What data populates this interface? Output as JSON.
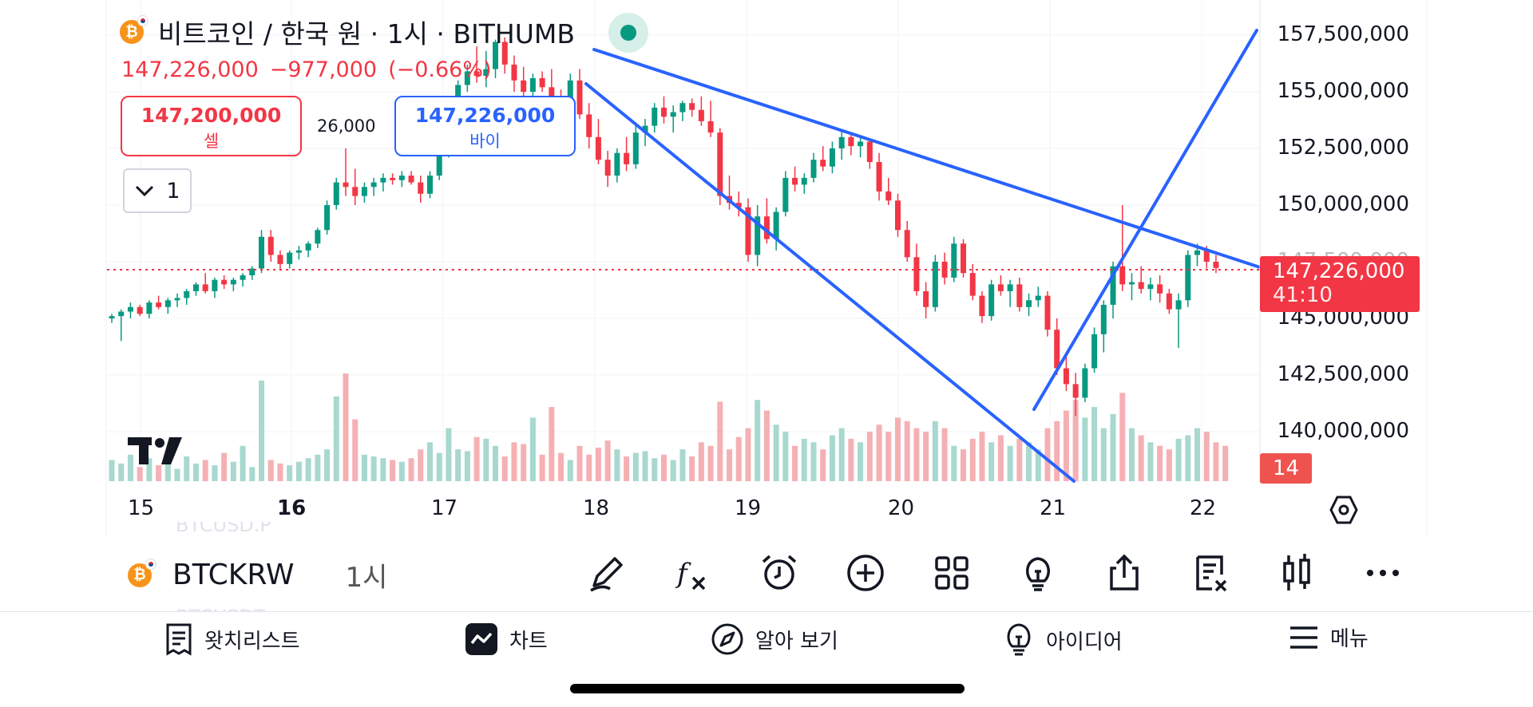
{
  "header": {
    "title": "비트코인 / 한국 원 · 1시 · BITHUMB",
    "last_price": "147,226,000",
    "change": "−977,000",
    "change_pct": "(−0.66%)"
  },
  "trade": {
    "sell_price": "147,200,000",
    "sell_label": "셀",
    "spread": "26,000",
    "buy_price": "147,226,000",
    "buy_label": "바이"
  },
  "interval_dropdown": {
    "value": "1"
  },
  "price_axis": {
    "labels": [
      "157,500,000",
      "155,000,000",
      "152,500,000",
      "150,000,000",
      "147,500,000",
      "145,000,000",
      "142,500,000",
      "140,000,000"
    ],
    "current_price": "147,226,000",
    "countdown": "41:10",
    "volume_tag": "14"
  },
  "time_axis": {
    "labels": [
      {
        "text": "15",
        "bold": false
      },
      {
        "text": "16",
        "bold": true
      },
      {
        "text": "17",
        "bold": false
      },
      {
        "text": "18",
        "bold": false
      },
      {
        "text": "19",
        "bold": false
      },
      {
        "text": "20",
        "bold": false
      },
      {
        "text": "21",
        "bold": false
      },
      {
        "text": "22",
        "bold": false
      }
    ]
  },
  "toolbar": {
    "symbol": "BTCKRW",
    "interval": "1시",
    "icons": [
      "pen-icon",
      "fx-indicator-icon",
      "alarm-clock-icon",
      "plus-circle-icon",
      "layout-grid-icon",
      "idea-bulb-icon",
      "share-icon",
      "compare-icon",
      "candlestick-icon",
      "more-icon"
    ]
  },
  "bottom_nav": {
    "items": [
      {
        "label": "왓치리스트",
        "icon": "watchlist-icon"
      },
      {
        "label": "차트",
        "icon": "chart-icon"
      },
      {
        "label": "알아 보기",
        "icon": "compass-icon"
      },
      {
        "label": "아이디어",
        "icon": "idea-icon"
      },
      {
        "label": "메뉴",
        "icon": "menu-icon"
      }
    ]
  },
  "ghost_labels": [
    "BTCUSD.P",
    "BTCUSDT"
  ],
  "colors": {
    "up": "#089981",
    "down": "#f23645",
    "trendline": "#2962ff",
    "up_volume": "#a8d8cf",
    "down_volume": "#f5b0b4"
  },
  "chart_data": {
    "type": "candlestick",
    "ylim": [
      138000000,
      158500000
    ],
    "candles": [
      [
        145000000,
        145200000,
        144800000,
        145100000
      ],
      [
        145100000,
        145400000,
        144000000,
        145300000
      ],
      [
        145300000,
        145700000,
        145000000,
        145500000
      ],
      [
        145500000,
        145600000,
        145100000,
        145200000
      ],
      [
        145200000,
        145800000,
        145000000,
        145700000
      ],
      [
        145700000,
        146000000,
        145400000,
        145500000
      ],
      [
        145500000,
        145900000,
        145200000,
        145800000
      ],
      [
        145800000,
        146100000,
        145500000,
        145900000
      ],
      [
        145900000,
        146300000,
        145600000,
        146200000
      ],
      [
        146200000,
        146600000,
        146000000,
        146500000
      ],
      [
        146500000,
        147000000,
        146100000,
        146200000
      ],
      [
        146200000,
        146800000,
        145900000,
        146700000
      ],
      [
        146700000,
        146900000,
        146300000,
        146500000
      ],
      [
        146500000,
        146800000,
        146200000,
        146700000
      ],
      [
        146700000,
        147000000,
        146400000,
        146900000
      ],
      [
        146900000,
        147300000,
        146700000,
        147200000
      ],
      [
        147200000,
        148900000,
        147000000,
        148600000
      ],
      [
        148600000,
        148900000,
        147500000,
        147800000
      ],
      [
        147800000,
        148000000,
        147100000,
        147400000
      ],
      [
        147400000,
        148000000,
        147200000,
        147900000
      ],
      [
        147900000,
        148200000,
        147600000,
        148000000
      ],
      [
        148000000,
        148400000,
        147700000,
        148300000
      ],
      [
        148300000,
        149000000,
        148100000,
        148900000
      ],
      [
        148900000,
        150200000,
        148700000,
        150000000
      ],
      [
        150000000,
        151200000,
        149800000,
        151000000
      ],
      [
        151000000,
        152500000,
        150400000,
        150800000
      ],
      [
        150800000,
        151600000,
        150000000,
        150400000
      ],
      [
        150400000,
        151000000,
        150100000,
        150800000
      ],
      [
        150800000,
        151200000,
        150400000,
        151000000
      ],
      [
        151000000,
        151400000,
        150600000,
        151200000
      ],
      [
        151200000,
        151400000,
        150900000,
        151100000
      ],
      [
        151100000,
        151500000,
        150800000,
        151300000
      ],
      [
        151300000,
        151500000,
        150900000,
        151000000
      ],
      [
        151000000,
        151300000,
        150100000,
        150500000
      ],
      [
        150500000,
        151500000,
        150300000,
        151300000
      ],
      [
        151300000,
        152500000,
        151100000,
        152300000
      ],
      [
        152300000,
        154000000,
        152100000,
        153700000
      ],
      [
        153700000,
        155500000,
        153500000,
        155300000
      ],
      [
        155300000,
        156200000,
        155000000,
        155900000
      ],
      [
        155900000,
        157000000,
        155400000,
        155700000
      ],
      [
        155700000,
        156800000,
        155200000,
        156000000
      ],
      [
        156000000,
        157300000,
        155600000,
        157200000
      ],
      [
        157200000,
        157400000,
        155800000,
        156200000
      ],
      [
        156200000,
        156600000,
        155000000,
        155500000
      ],
      [
        155500000,
        156100000,
        154700000,
        155000000
      ],
      [
        155000000,
        155800000,
        154800000,
        155600000
      ],
      [
        155600000,
        155900000,
        155000000,
        155200000
      ],
      [
        155200000,
        156000000,
        153000000,
        154800000
      ],
      [
        154800000,
        155100000,
        154200000,
        154600000
      ],
      [
        154600000,
        155800000,
        154400000,
        155500000
      ],
      [
        155500000,
        156000000,
        153800000,
        154000000
      ],
      [
        154000000,
        154500000,
        152500000,
        153000000
      ],
      [
        153000000,
        153800000,
        151800000,
        152000000
      ],
      [
        152000000,
        152400000,
        150800000,
        151300000
      ],
      [
        151300000,
        152500000,
        151000000,
        152300000
      ],
      [
        152300000,
        153000000,
        151500000,
        151800000
      ],
      [
        151800000,
        153500000,
        151600000,
        153200000
      ],
      [
        153200000,
        153800000,
        152600000,
        153500000
      ],
      [
        153500000,
        154500000,
        153200000,
        154300000
      ],
      [
        154300000,
        154800000,
        153600000,
        153900000
      ],
      [
        153900000,
        154400000,
        153200000,
        154100000
      ],
      [
        154100000,
        154600000,
        153700000,
        154500000
      ],
      [
        154500000,
        154700000,
        153900000,
        154200000
      ],
      [
        154200000,
        154800000,
        153500000,
        153700000
      ],
      [
        153700000,
        154600000,
        153000000,
        153200000
      ],
      [
        153200000,
        153400000,
        150000000,
        150400000
      ],
      [
        150400000,
        151300000,
        149800000,
        150100000
      ],
      [
        150100000,
        150600000,
        149500000,
        149900000
      ],
      [
        149900000,
        150300000,
        147500000,
        147800000
      ],
      [
        147800000,
        150000000,
        147300000,
        149500000
      ],
      [
        149500000,
        150300000,
        148300000,
        148500000
      ],
      [
        148500000,
        149900000,
        148000000,
        149700000
      ],
      [
        149700000,
        151500000,
        149500000,
        151200000
      ],
      [
        151200000,
        151700000,
        150600000,
        150900000
      ],
      [
        150900000,
        151400000,
        150500000,
        151200000
      ],
      [
        151200000,
        152300000,
        151000000,
        152000000
      ],
      [
        152000000,
        152600000,
        151500000,
        151700000
      ],
      [
        151700000,
        152800000,
        151400000,
        152500000
      ],
      [
        152500000,
        153300000,
        152000000,
        153000000
      ],
      [
        153000000,
        153200000,
        152200000,
        152600000
      ],
      [
        152600000,
        153000000,
        152100000,
        152800000
      ],
      [
        152800000,
        152900000,
        151600000,
        151900000
      ],
      [
        151900000,
        152300000,
        150200000,
        150600000
      ],
      [
        150600000,
        151200000,
        150000000,
        150200000
      ],
      [
        150200000,
        150500000,
        148600000,
        148900000
      ],
      [
        148900000,
        149300000,
        147500000,
        147700000
      ],
      [
        147700000,
        148300000,
        146000000,
        146200000
      ],
      [
        146200000,
        146600000,
        145000000,
        145500000
      ],
      [
        145500000,
        147800000,
        145300000,
        147500000
      ],
      [
        147500000,
        147900000,
        146500000,
        146800000
      ],
      [
        146800000,
        148600000,
        146600000,
        148300000
      ],
      [
        148300000,
        148500000,
        146800000,
        147000000
      ],
      [
        147000000,
        147400000,
        145800000,
        146000000
      ],
      [
        146000000,
        146200000,
        144800000,
        145100000
      ],
      [
        145100000,
        146700000,
        144900000,
        146500000
      ],
      [
        146500000,
        146900000,
        146000000,
        146200000
      ],
      [
        146200000,
        146700000,
        145500000,
        146500000
      ],
      [
        146500000,
        146800000,
        145300000,
        145500000
      ],
      [
        145500000,
        146100000,
        145100000,
        145800000
      ],
      [
        145800000,
        146400000,
        145500000,
        146000000
      ],
      [
        146000000,
        146200000,
        144200000,
        144500000
      ],
      [
        144500000,
        145000000,
        142500000,
        142800000
      ],
      [
        142800000,
        143300000,
        141800000,
        142100000
      ],
      [
        142100000,
        142600000,
        140700000,
        141500000
      ],
      [
        141500000,
        143000000,
        141300000,
        142800000
      ],
      [
        142800000,
        144600000,
        142600000,
        144300000
      ],
      [
        144300000,
        145800000,
        143500000,
        145600000
      ],
      [
        145600000,
        147500000,
        145000000,
        147300000
      ],
      [
        147300000,
        150000000,
        146200000,
        146500000
      ],
      [
        146500000,
        147000000,
        145800000,
        146600000
      ],
      [
        146600000,
        147300000,
        146100000,
        146300000
      ],
      [
        146300000,
        146800000,
        145800000,
        146500000
      ],
      [
        146500000,
        146900000,
        145700000,
        146100000
      ],
      [
        146100000,
        146300000,
        145200000,
        145400000
      ],
      [
        145400000,
        146100000,
        143700000,
        145800000
      ],
      [
        145800000,
        148000000,
        145500000,
        147800000
      ],
      [
        147800000,
        148300000,
        147300000,
        148000000
      ],
      [
        148000000,
        148200000,
        147200000,
        147500000
      ],
      [
        147500000,
        147800000,
        147000000,
        147226000
      ]
    ],
    "volumes": [
      12,
      10,
      15,
      8,
      13,
      9,
      11,
      7,
      14,
      10,
      12,
      9,
      16,
      11,
      20,
      8,
      57,
      12,
      10,
      9,
      11,
      13,
      15,
      18,
      48,
      61,
      35,
      15,
      14,
      13,
      12,
      11,
      13,
      18,
      22,
      16,
      30,
      18,
      17,
      25,
      24,
      20,
      14,
      22,
      21,
      36,
      15,
      42,
      16,
      12,
      20,
      15,
      19,
      23,
      18,
      14,
      16,
      17,
      13,
      15,
      12,
      18,
      14,
      22,
      20,
      45,
      18,
      25,
      30,
      46,
      40,
      32,
      28,
      20,
      24,
      22,
      18,
      26,
      30,
      24,
      22,
      28,
      32,
      28,
      36,
      34,
      30,
      28,
      34,
      30,
      20,
      18,
      24,
      28,
      22,
      26,
      20,
      24,
      22,
      18,
      30,
      34,
      40,
      46,
      36,
      42,
      30,
      38,
      50,
      30,
      26,
      22,
      20,
      18,
      24,
      26,
      30,
      28,
      22,
      20
    ]
  }
}
